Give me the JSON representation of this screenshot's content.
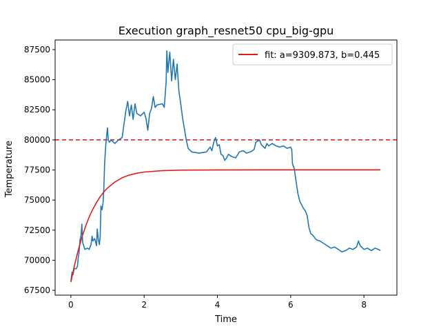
{
  "chart_data": {
    "type": "line",
    "title": "Execution graph_resnet50 cpu_big-gpu",
    "xlabel": "Time",
    "ylabel": "Temperature",
    "xlim": [
      -0.43,
      8.9
    ],
    "ylim": [
      67100,
      88300
    ],
    "xticks": [
      0,
      2,
      4,
      6,
      8
    ],
    "yticks": [
      67500,
      70000,
      72500,
      75000,
      77500,
      80000,
      82500,
      85000,
      87500
    ],
    "grid": false,
    "legend": {
      "placement": "top-right",
      "entries": [
        "fit: a=9309.873, b=0.445"
      ]
    },
    "threshold": {
      "y": 80000,
      "style": "dashed",
      "color": "#d62728"
    },
    "series": [
      {
        "key": "measured",
        "color": "#1f77b4",
        "points": [
          [
            0,
            68200
          ],
          [
            0.03,
            69000
          ],
          [
            0.06,
            68800
          ],
          [
            0.09,
            69300
          ],
          [
            0.15,
            69300
          ],
          [
            0.18,
            69500
          ],
          [
            0.2,
            70200
          ],
          [
            0.22,
            70600
          ],
          [
            0.25,
            71700
          ],
          [
            0.28,
            72100
          ],
          [
            0.3,
            73000
          ],
          [
            0.32,
            71500
          ],
          [
            0.35,
            71200
          ],
          [
            0.38,
            70900
          ],
          [
            0.45,
            71000
          ],
          [
            0.5,
            70900
          ],
          [
            0.55,
            71300
          ],
          [
            0.58,
            72000
          ],
          [
            0.6,
            71600
          ],
          [
            0.65,
            71800
          ],
          [
            0.7,
            71200
          ],
          [
            0.72,
            72600
          ],
          [
            0.75,
            71700
          ],
          [
            0.78,
            71300
          ],
          [
            0.8,
            72000
          ],
          [
            0.82,
            74500
          ],
          [
            0.85,
            74200
          ],
          [
            0.88,
            74800
          ],
          [
            0.9,
            76000
          ],
          [
            0.92,
            78000
          ],
          [
            0.95,
            79500
          ],
          [
            0.98,
            80500
          ],
          [
            1.0,
            81000
          ],
          [
            1.02,
            80000
          ],
          [
            1.05,
            79800
          ],
          [
            1.1,
            80000
          ],
          [
            1.2,
            79700
          ],
          [
            1.3,
            80000
          ],
          [
            1.4,
            80200
          ],
          [
            1.45,
            81300
          ],
          [
            1.5,
            82400
          ],
          [
            1.55,
            83200
          ],
          [
            1.6,
            82000
          ],
          [
            1.65,
            82900
          ],
          [
            1.7,
            81700
          ],
          [
            1.75,
            83000
          ],
          [
            1.8,
            82200
          ],
          [
            1.9,
            82000
          ],
          [
            2.0,
            82300
          ],
          [
            2.05,
            81800
          ],
          [
            2.1,
            80800
          ],
          [
            2.15,
            82200
          ],
          [
            2.2,
            82600
          ],
          [
            2.25,
            83600
          ],
          [
            2.3,
            82700
          ],
          [
            2.35,
            82900
          ],
          [
            2.5,
            83000
          ],
          [
            2.55,
            82700
          ],
          [
            2.6,
            84800
          ],
          [
            2.62,
            87400
          ],
          [
            2.65,
            85600
          ],
          [
            2.7,
            87300
          ],
          [
            2.75,
            84900
          ],
          [
            2.8,
            86700
          ],
          [
            2.85,
            85000
          ],
          [
            2.9,
            86300
          ],
          [
            2.95,
            84000
          ],
          [
            3.0,
            83000
          ],
          [
            3.05,
            81800
          ],
          [
            3.1,
            80900
          ],
          [
            3.15,
            80000
          ],
          [
            3.2,
            79300
          ],
          [
            3.3,
            79000
          ],
          [
            3.5,
            78900
          ],
          [
            3.7,
            79000
          ],
          [
            3.8,
            79400
          ],
          [
            3.85,
            79100
          ],
          [
            3.9,
            79800
          ],
          [
            3.95,
            80200
          ],
          [
            4.0,
            79500
          ],
          [
            4.05,
            79600
          ],
          [
            4.1,
            78800
          ],
          [
            4.15,
            78700
          ],
          [
            4.2,
            78300
          ],
          [
            4.25,
            78500
          ],
          [
            4.3,
            78800
          ],
          [
            4.4,
            78600
          ],
          [
            4.5,
            78500
          ],
          [
            4.6,
            79000
          ],
          [
            4.7,
            79100
          ],
          [
            4.8,
            78900
          ],
          [
            4.9,
            79000
          ],
          [
            5.0,
            79200
          ],
          [
            5.05,
            79800
          ],
          [
            5.1,
            79900
          ],
          [
            5.15,
            80000
          ],
          [
            5.2,
            79600
          ],
          [
            5.3,
            79300
          ],
          [
            5.35,
            79700
          ],
          [
            5.4,
            79500
          ],
          [
            5.5,
            79700
          ],
          [
            5.6,
            79500
          ],
          [
            5.7,
            79400
          ],
          [
            5.8,
            79500
          ],
          [
            5.9,
            79300
          ],
          [
            6.0,
            79400
          ],
          [
            6.03,
            79200
          ],
          [
            6.05,
            78000
          ],
          [
            6.1,
            77600
          ],
          [
            6.15,
            76500
          ],
          [
            6.2,
            75500
          ],
          [
            6.25,
            74900
          ],
          [
            6.3,
            74600
          ],
          [
            6.35,
            74300
          ],
          [
            6.4,
            74100
          ],
          [
            6.45,
            73700
          ],
          [
            6.5,
            72700
          ],
          [
            6.55,
            72200
          ],
          [
            6.6,
            72100
          ],
          [
            6.65,
            71900
          ],
          [
            6.7,
            71700
          ],
          [
            6.8,
            71600
          ],
          [
            6.9,
            71400
          ],
          [
            7.0,
            71200
          ],
          [
            7.1,
            71000
          ],
          [
            7.2,
            71100
          ],
          [
            7.3,
            70900
          ],
          [
            7.4,
            70700
          ],
          [
            7.5,
            70800
          ],
          [
            7.6,
            71000
          ],
          [
            7.7,
            70900
          ],
          [
            7.8,
            71100
          ],
          [
            7.85,
            71600
          ],
          [
            7.9,
            71200
          ],
          [
            8.0,
            70900
          ],
          [
            8.1,
            71000
          ],
          [
            8.2,
            70800
          ],
          [
            8.3,
            71000
          ],
          [
            8.4,
            70900
          ],
          [
            8.45,
            70800
          ]
        ]
      },
      {
        "key": "fit",
        "name": "fit: a=9309.873, b=0.445",
        "color": "#e31a1c",
        "points": [
          [
            0,
            68200
          ],
          [
            0.1,
            69600
          ],
          [
            0.2,
            70820
          ],
          [
            0.3,
            71900
          ],
          [
            0.4,
            72800
          ],
          [
            0.5,
            73600
          ],
          [
            0.6,
            74250
          ],
          [
            0.7,
            74800
          ],
          [
            0.8,
            75280
          ],
          [
            0.9,
            75680
          ],
          [
            1.0,
            76000
          ],
          [
            1.2,
            76500
          ],
          [
            1.4,
            76850
          ],
          [
            1.6,
            77080
          ],
          [
            1.8,
            77230
          ],
          [
            2.0,
            77330
          ],
          [
            2.5,
            77450
          ],
          [
            3.0,
            77490
          ],
          [
            4.0,
            77505
          ],
          [
            6.0,
            77510
          ],
          [
            8.45,
            77510
          ]
        ]
      }
    ]
  }
}
